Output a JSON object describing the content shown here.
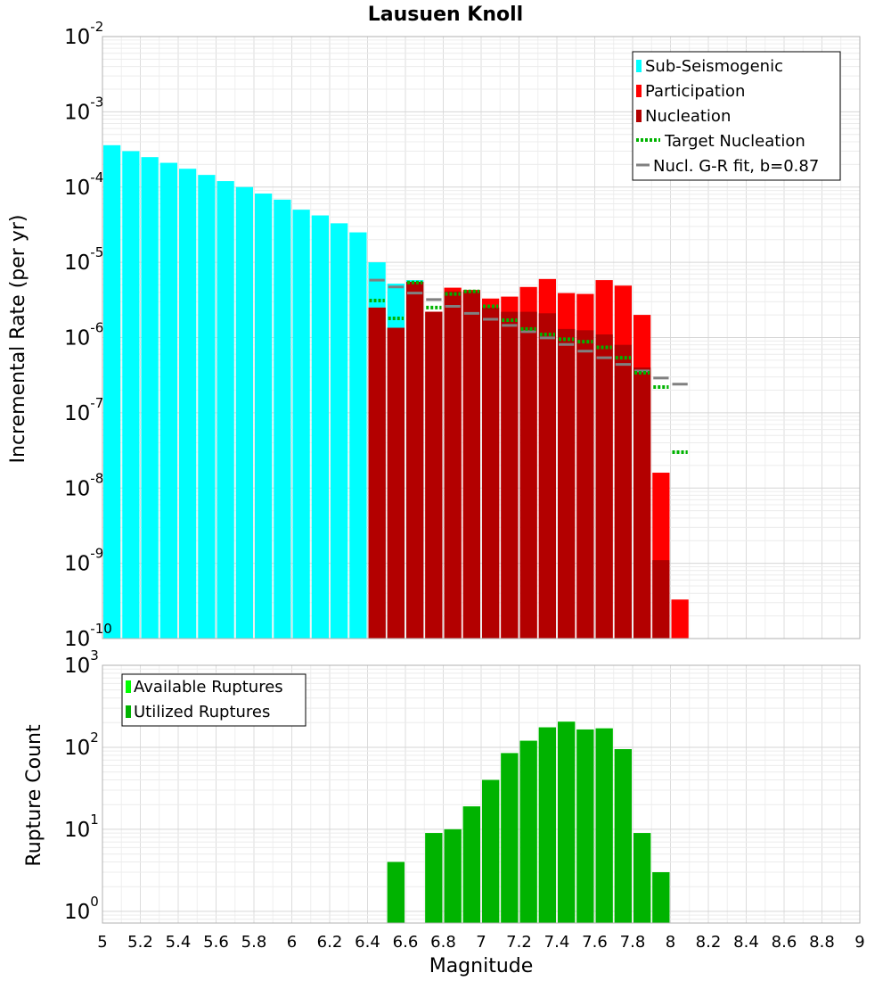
{
  "title": "Lausuen Knoll",
  "x_axis": {
    "label": "Magnitude",
    "ticks": [
      "5",
      "5.2",
      "5.4",
      "5.6",
      "5.8",
      "6",
      "6.2",
      "6.4",
      "6.6",
      "6.8",
      "7",
      "7.2",
      "7.4",
      "7.6",
      "7.8",
      "8",
      "8.2",
      "8.4",
      "8.6",
      "8.8",
      "9"
    ]
  },
  "chart_data": [
    {
      "type": "bar",
      "title": "Lausuen Knoll",
      "xlabel": "",
      "ylabel": "Incremental Rate (per yr)",
      "xlim": [
        5,
        9
      ],
      "ylim": [
        1e-10,
        0.01
      ],
      "yscale": "log",
      "bin_width": 0.1,
      "y_tick_exponents": [
        "-10",
        "-9",
        "-8",
        "-7",
        "-6",
        "-5",
        "-4",
        "-3",
        "-2"
      ],
      "legend": {
        "position": "top-right",
        "entries": [
          {
            "label": "Sub-Seismogenic",
            "style": "square",
            "color": "#00ffff"
          },
          {
            "label": "Participation",
            "style": "square",
            "color": "#ff0000"
          },
          {
            "label": "Nucleation",
            "style": "square",
            "color": "#b30000"
          },
          {
            "label": "Target Nucleation",
            "style": "dotted",
            "color": "#00b300"
          },
          {
            "label": "Nucl. G-R fit, b=0.87",
            "style": "line",
            "color": "#808080"
          }
        ]
      },
      "series": [
        {
          "name": "Sub-Seismogenic",
          "kind": "bar",
          "color": "#00ffff",
          "x": [
            5.05,
            5.15,
            5.25,
            5.35,
            5.45,
            5.55,
            5.65,
            5.75,
            5.85,
            5.95,
            6.05,
            6.15,
            6.25,
            6.35,
            6.45,
            6.55,
            6.65
          ],
          "values": [
            0.00036,
            0.0003,
            0.00025,
            0.00021,
            0.000175,
            0.000145,
            0.00012,
            0.0001,
            8.2e-05,
            6.8e-05,
            5e-05,
            4.2e-05,
            3.3e-05,
            2.5e-05,
            1e-05,
            5.2e-06,
            5.8e-06
          ]
        },
        {
          "name": "Participation",
          "kind": "bar",
          "color": "#ff0000",
          "x": [
            6.45,
            6.55,
            6.65,
            6.75,
            6.85,
            6.95,
            7.05,
            7.15,
            7.25,
            7.35,
            7.45,
            7.55,
            7.65,
            7.75,
            7.85,
            7.95,
            8.05
          ],
          "values": [
            2.5e-06,
            1.35e-06,
            5.5e-06,
            2.2e-06,
            4.6e-06,
            4.3e-06,
            3.3e-06,
            3.5e-06,
            4.7e-06,
            6e-06,
            3.9e-06,
            3.8e-06,
            5.8e-06,
            4.9e-06,
            2e-06,
            1.6e-08,
            3.3e-10
          ]
        },
        {
          "name": "Nucleation",
          "kind": "bar",
          "color": "#b30000",
          "x": [
            6.45,
            6.55,
            6.65,
            6.75,
            6.85,
            6.95,
            7.05,
            7.15,
            7.25,
            7.35,
            7.45,
            7.55,
            7.65,
            7.75,
            7.85,
            7.95
          ],
          "values": [
            2.5e-06,
            1.35e-06,
            5.5e-06,
            2.2e-06,
            4.1e-06,
            4.1e-06,
            2.5e-06,
            2.2e-06,
            2.2e-06,
            2.1e-06,
            1.3e-06,
            1.25e-06,
            1.1e-06,
            8e-07,
            4e-07,
            1.1e-09
          ]
        },
        {
          "name": "Target Nucleation",
          "kind": "step",
          "color": "#00b300",
          "x": [
            6.45,
            6.55,
            6.65,
            6.75,
            6.85,
            6.95,
            7.05,
            7.15,
            7.25,
            7.35,
            7.45,
            7.55,
            7.65,
            7.75,
            7.85,
            7.95,
            8.05
          ],
          "values": [
            3.1e-06,
            1.8e-06,
            5.4e-06,
            2.5e-06,
            3.8e-06,
            4.1e-06,
            2.6e-06,
            1.7e-06,
            1.3e-06,
            1.1e-06,
            9.5e-07,
            8.8e-07,
            7.4e-07,
            5.4e-07,
            3.4e-07,
            2.2e-07,
            3e-08
          ]
        },
        {
          "name": "Nucl. G-R fit, b=0.87",
          "kind": "step",
          "color": "#808080",
          "x": [
            6.45,
            6.55,
            6.65,
            6.75,
            6.85,
            6.95,
            7.05,
            7.15,
            7.25,
            7.35,
            7.45,
            7.55,
            7.65,
            7.75,
            7.85,
            7.95,
            8.05
          ],
          "values": [
            5.8e-06,
            4.7e-06,
            3.9e-06,
            3.2e-06,
            2.6e-06,
            2.1e-06,
            1.75e-06,
            1.45e-06,
            1.2e-06,
            9.9e-07,
            8.1e-07,
            6.6e-07,
            5.4e-07,
            4.4e-07,
            3.6e-07,
            2.9e-07,
            2.4e-07
          ]
        }
      ]
    },
    {
      "type": "bar",
      "xlabel": "Magnitude",
      "ylabel": "Rupture Count",
      "xlim": [
        5,
        9
      ],
      "ylim": [
        0.72,
        1000
      ],
      "yscale": "log",
      "bin_width": 0.1,
      "y_tick_exponents": [
        "0",
        "1",
        "2",
        "3"
      ],
      "legend": {
        "position": "top-left",
        "entries": [
          {
            "label": "Available Ruptures",
            "style": "square",
            "color": "#00ff00"
          },
          {
            "label": "Utilized Ruptures",
            "style": "square",
            "color": "#00b300"
          }
        ]
      },
      "series": [
        {
          "name": "Available Ruptures",
          "kind": "bar",
          "color": "#00ff00",
          "x": [
            6.55,
            6.75,
            6.85,
            6.95,
            7.05,
            7.15,
            7.25,
            7.35,
            7.45,
            7.55,
            7.65,
            7.75,
            7.85,
            7.95
          ],
          "values": [
            4,
            9,
            10,
            19,
            40,
            85,
            120,
            175,
            205,
            165,
            170,
            95,
            9,
            3
          ]
        },
        {
          "name": "Utilized Ruptures",
          "kind": "bar",
          "color": "#00b300",
          "x": [
            6.55,
            6.75,
            6.85,
            6.95,
            7.05,
            7.15,
            7.25,
            7.35,
            7.45,
            7.55,
            7.65,
            7.75,
            7.85,
            7.95
          ],
          "values": [
            4,
            9,
            10,
            19,
            40,
            85,
            120,
            175,
            205,
            165,
            170,
            95,
            9,
            3
          ]
        }
      ]
    }
  ]
}
